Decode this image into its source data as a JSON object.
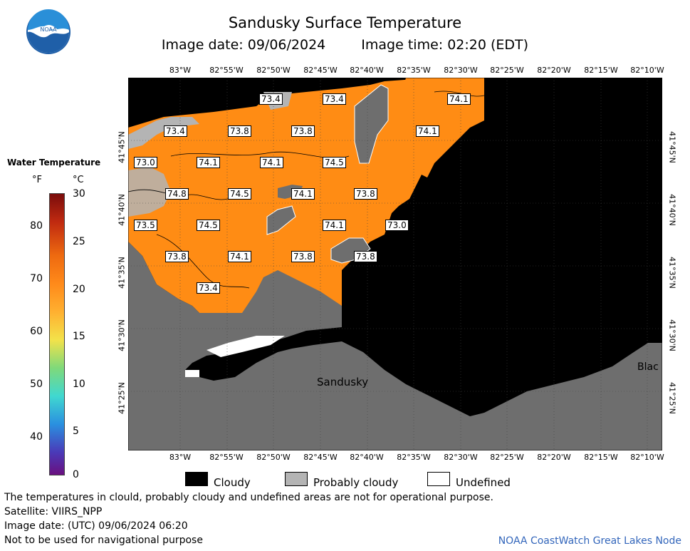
{
  "header": {
    "title": "Sandusky Surface Temperature",
    "image_date": "Image date: 09/06/2024",
    "image_time": "Image time: 02:20 (EDT)"
  },
  "legend": {
    "title": "Water Temperature",
    "unit_f": "°F",
    "unit_c": "°C",
    "f_ticks": [
      "80",
      "70",
      "60",
      "50",
      "40"
    ],
    "c_ticks": [
      "30",
      "25",
      "20",
      "15",
      "10",
      "5",
      "0"
    ]
  },
  "map": {
    "lon_labels": [
      "83°W",
      "82°55'W",
      "82°50'W",
      "82°45'W",
      "82°40'W",
      "82°35'W",
      "82°30'W",
      "82°25'W",
      "82°20'W",
      "82°15'W",
      "82°10'W"
    ],
    "lat_labels": [
      "41°45'N",
      "41°40'N",
      "41°35'N",
      "41°30'N",
      "41°25'N"
    ],
    "place_labels": [
      "Sandusky",
      "Blac"
    ],
    "temperature_labels": [
      "73.4",
      "73.4",
      "74.1",
      "73.4",
      "73.8",
      "73.8",
      "74.1",
      "73.0",
      "74.1",
      "74.1",
      "74.5",
      "74.8",
      "74.5",
      "74.1",
      "73.8",
      "73.5",
      "74.5",
      "74.1",
      "73.0",
      "73.8",
      "74.1",
      "73.8",
      "73.8",
      "73.4"
    ],
    "colors": {
      "water_warm": "#ff8c14",
      "cloudy": "#000000",
      "probably_cloudy": "#b4b4b4",
      "undefined": "#ffffff",
      "land": "#6e6e6e"
    }
  },
  "key": {
    "cloudy": "Cloudy",
    "probably_cloudy": "Probably cloudy",
    "undefined": "Undefined"
  },
  "footer": {
    "disclaimer": "The temperatures in clould, probably cloudy and undefined areas are not for operational purpose.",
    "satellite": "Satellite: VIIRS_NPP",
    "utc_date": "Image date: (UTC) 09/06/2024  06:20",
    "nav_warning": "Not to be used for navigational purpose",
    "credit": "NOAA CoastWatch Great Lakes Node"
  }
}
